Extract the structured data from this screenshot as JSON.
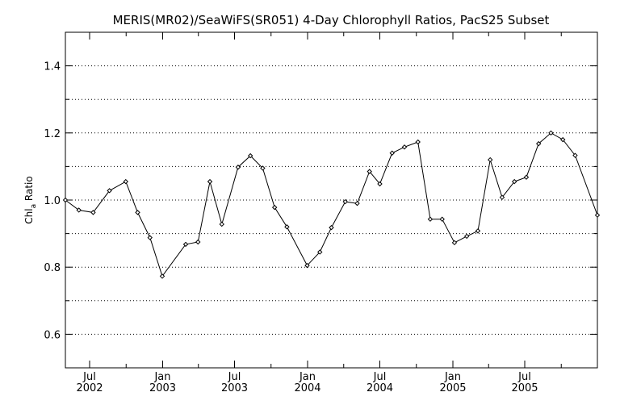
{
  "chart_data": {
    "type": "line",
    "title": "MERIS(MR02)/SeaWiFS(SR051) 4-Day Chlorophyll Ratios, PacS25 Subset",
    "ylabel": "Chla Ratio",
    "ylabel_main": "Chl",
    "ylabel_sub": "a",
    "ylabel_rest": " Ratio",
    "xlabel": "",
    "ylim": [
      0.5,
      1.5
    ],
    "yticks": [
      0.6,
      0.8,
      1.0,
      1.2,
      1.4
    ],
    "ytick_labels": [
      "0.6",
      "0.8",
      "1.0",
      "1.2",
      "1.4"
    ],
    "xlim": [
      "2002-05-01",
      "2005-12-31"
    ],
    "xticks": [
      {
        "date": "2002-07-01",
        "line1": "Jul",
        "line2": "2002"
      },
      {
        "date": "2003-01-01",
        "line1": "Jan",
        "line2": "2003"
      },
      {
        "date": "2003-07-01",
        "line1": "Jul",
        "line2": "2003"
      },
      {
        "date": "2004-01-01",
        "line1": "Jan",
        "line2": "2004"
      },
      {
        "date": "2004-07-01",
        "line1": "Jul",
        "line2": "2004"
      },
      {
        "date": "2005-01-01",
        "line1": "Jan",
        "line2": "2005"
      },
      {
        "date": "2005-07-01",
        "line1": "Jul",
        "line2": "2005"
      }
    ],
    "grid": true,
    "series": [
      {
        "x": [
          "2002-05-01",
          "2002-06-04",
          "2002-07-10",
          "2002-08-20",
          "2002-09-30",
          "2002-10-30",
          "2002-11-30",
          "2002-12-31",
          "2003-02-28",
          "2003-03-31",
          "2003-04-30",
          "2003-05-30",
          "2003-07-10",
          "2003-08-10",
          "2003-09-10",
          "2003-10-10",
          "2003-11-10",
          "2003-12-31",
          "2004-02-01",
          "2004-03-01",
          "2004-04-05",
          "2004-05-05",
          "2004-06-05",
          "2004-07-01",
          "2004-08-01",
          "2004-09-01",
          "2004-10-05",
          "2004-11-05",
          "2004-12-05",
          "2005-01-05",
          "2005-02-05",
          "2005-03-05",
          "2005-04-05",
          "2005-05-05",
          "2005-06-05",
          "2005-07-05",
          "2005-08-05",
          "2005-09-05",
          "2005-10-05",
          "2005-11-05",
          "2005-12-31"
        ],
        "y": [
          1.0,
          0.97,
          0.963,
          1.028,
          1.055,
          0.963,
          0.888,
          0.773,
          0.868,
          0.875,
          1.055,
          0.928,
          1.098,
          1.132,
          1.095,
          0.978,
          0.92,
          0.805,
          0.845,
          0.918,
          0.995,
          0.99,
          1.085,
          1.048,
          1.14,
          1.158,
          1.173,
          0.943,
          0.943,
          0.873,
          0.892,
          0.908,
          1.12,
          1.008,
          1.055,
          1.068,
          1.168,
          1.2,
          1.18,
          1.133,
          0.955
        ]
      }
    ]
  }
}
